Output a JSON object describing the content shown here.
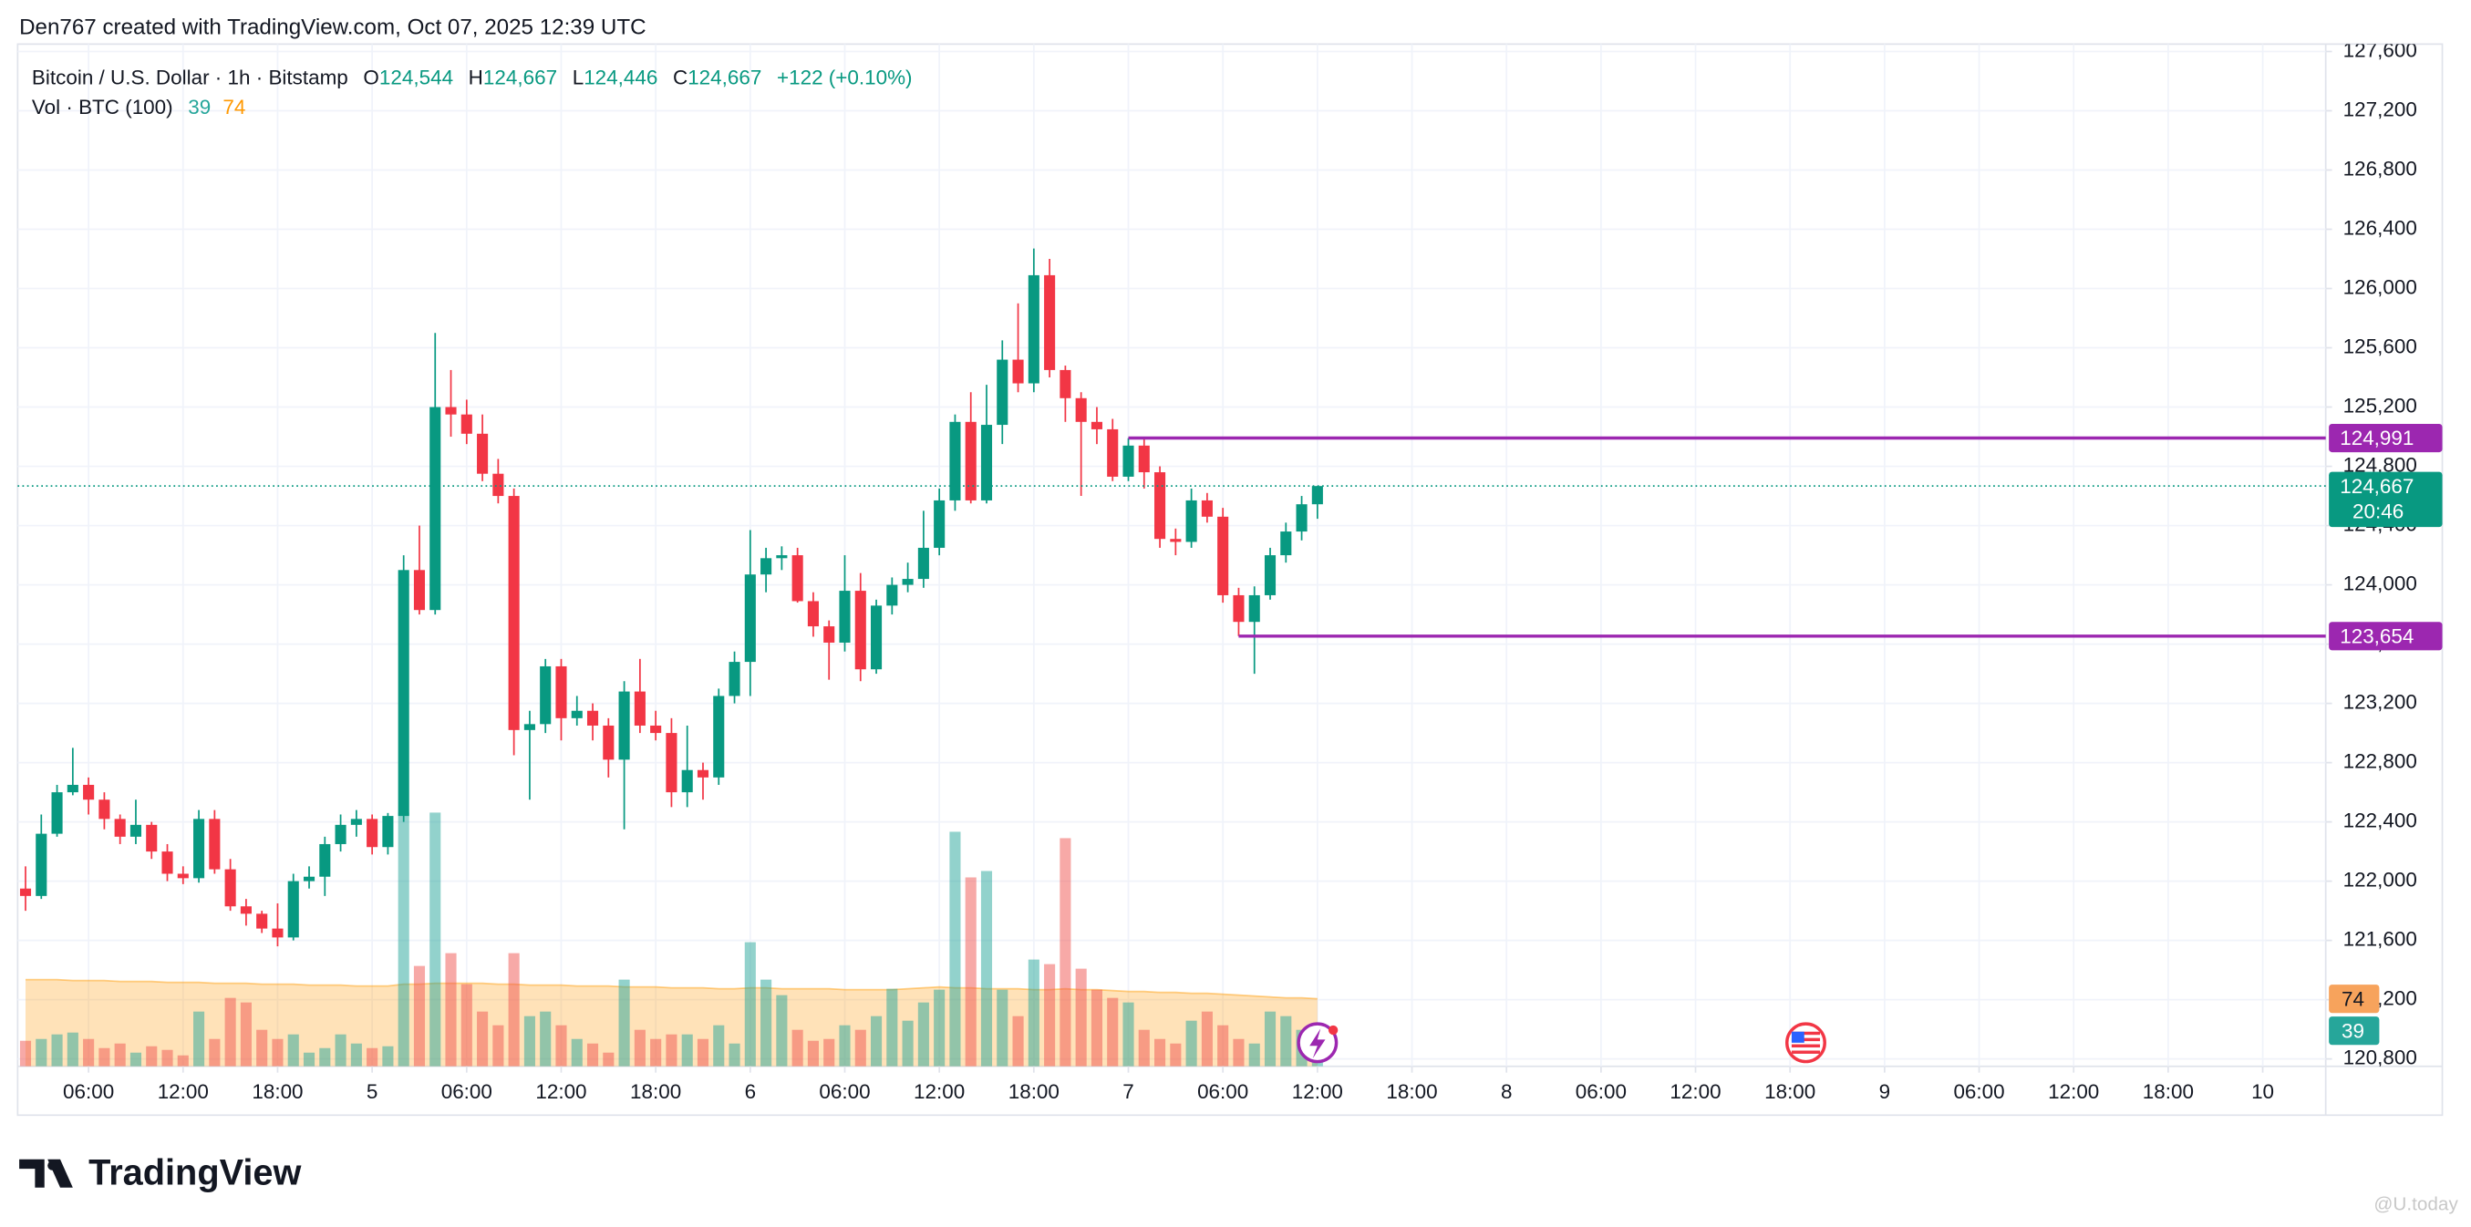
{
  "header": {
    "text": "Den767 created with TradingView.com, Oct 07, 2025 12:39 UTC"
  },
  "chart_data": {
    "type": "candlestick",
    "symbol": "Bitcoin / U.S. Dollar · 1h · Bitstamp",
    "ohlc_letters": [
      "O",
      "H",
      "L",
      "C"
    ],
    "last_labels": {
      "o": "124,544",
      "h": "124,667",
      "l": "124,446",
      "c": "124,667",
      "change": "+122 (+0.10%)"
    },
    "up_color": "#089981",
    "down_color": "#f23645",
    "grid": true,
    "x": [
      2,
      3,
      4,
      5,
      6,
      7,
      8,
      9,
      10,
      11,
      12,
      13,
      14,
      15,
      16,
      17,
      18,
      19,
      20,
      21,
      22,
      23,
      24,
      25,
      26,
      27,
      28,
      29,
      30,
      31,
      32,
      33,
      34,
      35,
      36,
      37,
      38,
      39,
      40,
      41,
      42,
      43,
      44,
      45,
      46,
      47,
      48,
      49,
      50,
      51,
      52,
      53,
      54,
      55,
      56,
      57,
      58,
      59,
      60,
      61,
      62,
      63,
      64,
      65,
      66,
      67,
      68,
      69,
      70,
      71,
      72,
      73,
      74,
      75,
      76,
      77,
      78,
      79,
      80,
      81,
      82,
      83,
      84
    ],
    "open": [
      121950,
      121900,
      122320,
      122600,
      122650,
      122550,
      122420,
      122300,
      122380,
      122200,
      122050,
      122020,
      122420,
      122080,
      121830,
      121780,
      121680,
      121620,
      122000,
      122030,
      122250,
      122380,
      122420,
      122230,
      122440,
      124100,
      123830,
      125200,
      125150,
      125020,
      124750,
      124600,
      123020,
      123060,
      123450,
      123100,
      123150,
      123050,
      122820,
      123280,
      123050,
      123000,
      122600,
      122750,
      122700,
      123250,
      123480,
      124070,
      124180,
      124200,
      123890,
      123720,
      123610,
      123960,
      123430,
      123860,
      124000,
      124040,
      124250,
      124570,
      125100,
      124570,
      125080,
      125520,
      125360,
      126090,
      125450,
      125260,
      125100,
      125050,
      124730,
      124940,
      124760,
      124310,
      124290,
      124570,
      124460,
      123930,
      123750,
      123930,
      124200,
      124360,
      124544
    ],
    "high": [
      122100,
      122450,
      122650,
      122900,
      122700,
      122600,
      122450,
      122550,
      122400,
      122250,
      122100,
      122480,
      122480,
      122150,
      121880,
      121800,
      121850,
      122050,
      122100,
      122300,
      122450,
      122480,
      122450,
      122460,
      124200,
      124400,
      125700,
      125450,
      125250,
      125150,
      124850,
      124650,
      123150,
      123500,
      123500,
      123250,
      123200,
      123100,
      123350,
      123500,
      123150,
      123100,
      123050,
      122800,
      123300,
      123550,
      124370,
      124250,
      124260,
      124250,
      123950,
      123760,
      124200,
      124080,
      123900,
      124050,
      124150,
      124500,
      124650,
      125150,
      125300,
      125350,
      125650,
      125900,
      126270,
      126200,
      125480,
      125300,
      125200,
      125120,
      124990,
      124991,
      124800,
      124380,
      124650,
      124620,
      124520,
      123980,
      123990,
      124250,
      124420,
      124600,
      124667
    ],
    "low": [
      121800,
      121880,
      122300,
      122580,
      122450,
      122350,
      122250,
      122250,
      122150,
      122000,
      121980,
      121990,
      122050,
      121800,
      121700,
      121650,
      121560,
      121600,
      121950,
      121900,
      122200,
      122300,
      122180,
      122180,
      122400,
      123800,
      123800,
      125000,
      124950,
      124700,
      124550,
      122850,
      122550,
      123000,
      122950,
      123050,
      122950,
      122700,
      122350,
      123000,
      122950,
      122500,
      122500,
      122550,
      122650,
      123200,
      123250,
      123950,
      124100,
      123880,
      123650,
      123360,
      123550,
      123350,
      123400,
      123800,
      123950,
      123980,
      124200,
      124500,
      124550,
      124550,
      124950,
      125300,
      125300,
      125400,
      125100,
      124600,
      124950,
      124700,
      124700,
      124650,
      124250,
      124200,
      124250,
      124420,
      123880,
      123654,
      123400,
      123900,
      124150,
      124300,
      124446
    ],
    "close": [
      121900,
      122320,
      122600,
      122650,
      122550,
      122420,
      122300,
      122380,
      122200,
      122050,
      122020,
      122420,
      122080,
      121830,
      121780,
      121680,
      121620,
      122000,
      122030,
      122250,
      122380,
      122420,
      122230,
      122440,
      124100,
      123830,
      125200,
      125150,
      125020,
      124750,
      124600,
      123020,
      123060,
      123450,
      123100,
      123150,
      123050,
      122820,
      123280,
      123050,
      123000,
      122600,
      122750,
      122700,
      123250,
      123480,
      124070,
      124180,
      124200,
      123890,
      123720,
      123610,
      123960,
      123430,
      123860,
      124000,
      124040,
      124250,
      124570,
      125100,
      124570,
      125080,
      125520,
      125360,
      126090,
      125450,
      125260,
      125100,
      125050,
      124730,
      124940,
      124760,
      124310,
      124290,
      124570,
      124460,
      123930,
      123750,
      123930,
      124200,
      124360,
      124544,
      124667
    ],
    "xlim": [
      1.5,
      148
    ],
    "xticks": [
      {
        "value": 6,
        "label": "06:00"
      },
      {
        "value": 12,
        "label": "12:00"
      },
      {
        "value": 18,
        "label": "18:00"
      },
      {
        "value": 24,
        "label": "5"
      },
      {
        "value": 30,
        "label": "06:00"
      },
      {
        "value": 36,
        "label": "12:00"
      },
      {
        "value": 42,
        "label": "18:00"
      },
      {
        "value": 48,
        "label": "6"
      },
      {
        "value": 54,
        "label": "06:00"
      },
      {
        "value": 60,
        "label": "12:00"
      },
      {
        "value": 66,
        "label": "18:00"
      },
      {
        "value": 72,
        "label": "7"
      },
      {
        "value": 78,
        "label": "06:00"
      },
      {
        "value": 84,
        "label": "12:00"
      },
      {
        "value": 90,
        "label": "18:00"
      },
      {
        "value": 96,
        "label": "8"
      },
      {
        "value": 102,
        "label": "06:00"
      },
      {
        "value": 108,
        "label": "12:00"
      },
      {
        "value": 114,
        "label": "18:00"
      },
      {
        "value": 120,
        "label": "9"
      },
      {
        "value": 126,
        "label": "06:00"
      },
      {
        "value": 132,
        "label": "12:00"
      },
      {
        "value": 138,
        "label": "18:00"
      },
      {
        "value": 144,
        "label": "10"
      }
    ],
    "ylim": [
      120750,
      127650
    ],
    "yticks": [
      {
        "value": 120800,
        "label": "120,800"
      },
      {
        "value": 121200,
        "label": "121,200"
      },
      {
        "value": 121600,
        "label": "121,600"
      },
      {
        "value": 122000,
        "label": "122,000"
      },
      {
        "value": 122400,
        "label": "122,400"
      },
      {
        "value": 122800,
        "label": "122,800"
      },
      {
        "value": 123200,
        "label": "123,200"
      },
      {
        "value": 123600,
        "label": "123,600"
      },
      {
        "value": 124000,
        "label": "124,000"
      },
      {
        "value": 124400,
        "label": "124,400"
      },
      {
        "value": 124800,
        "label": "124,800"
      },
      {
        "value": 125200,
        "label": "125,200"
      },
      {
        "value": 125600,
        "label": "125,600"
      },
      {
        "value": 126000,
        "label": "126,000"
      },
      {
        "value": 126400,
        "label": "126,400"
      },
      {
        "value": 126800,
        "label": "126,800"
      },
      {
        "value": 127200,
        "label": "127,200"
      },
      {
        "value": 127600,
        "label": "127,600"
      }
    ],
    "volume": {
      "label": "Vol · BTC (100)",
      "up_color": "rgba(38,166,154,0.5)",
      "down_color": "rgba(239,83,80,0.5)",
      "ma_color": "#ff9800",
      "ylim": [
        0,
        1120
      ],
      "values": [
        28,
        30,
        35,
        37,
        30,
        20,
        25,
        15,
        22,
        18,
        12,
        60,
        30,
        75,
        70,
        40,
        30,
        35,
        15,
        20,
        35,
        25,
        20,
        22,
        278,
        110,
        278,
        124,
        90,
        60,
        45,
        124,
        55,
        60,
        45,
        30,
        25,
        15,
        95,
        40,
        30,
        35,
        35,
        30,
        45,
        25,
        136,
        95,
        78,
        40,
        28,
        30,
        45,
        40,
        55,
        85,
        50,
        70,
        84,
        257,
        207,
        214,
        84,
        55,
        117,
        112,
        250,
        107,
        84,
        75,
        70,
        40,
        30,
        25,
        50,
        60,
        45,
        30,
        25,
        60,
        55,
        40,
        39
      ],
      "ma_values": [
        95,
        95,
        95,
        94,
        94,
        94,
        93,
        93,
        93,
        92,
        92,
        92,
        91,
        91,
        91,
        90,
        90,
        90,
        89,
        89,
        89,
        88,
        88,
        88,
        90,
        90,
        91,
        91,
        91,
        91,
        90,
        90,
        89,
        89,
        89,
        88,
        88,
        88,
        87,
        87,
        87,
        86,
        86,
        86,
        85,
        85,
        86,
        86,
        85,
        85,
        85,
        85,
        84,
        84,
        84,
        84,
        85,
        86,
        87,
        86,
        86,
        85,
        85,
        85,
        84,
        84,
        85,
        84,
        84,
        83,
        82,
        82,
        81,
        81,
        80,
        80,
        79,
        78,
        77,
        76,
        75,
        75,
        74
      ]
    },
    "price_lines": [
      {
        "value": 124991,
        "label": "124,991",
        "start_x": 72,
        "color": "#9c27b0"
      },
      {
        "value": 123654,
        "label": "123,654",
        "start_x": 79,
        "color": "#9c27b0"
      }
    ],
    "last_price": {
      "value": 124667,
      "label": "124,667",
      "countdown": "20:46"
    }
  },
  "footer": {
    "logo": "TradingView",
    "watermark": "@U.today"
  }
}
